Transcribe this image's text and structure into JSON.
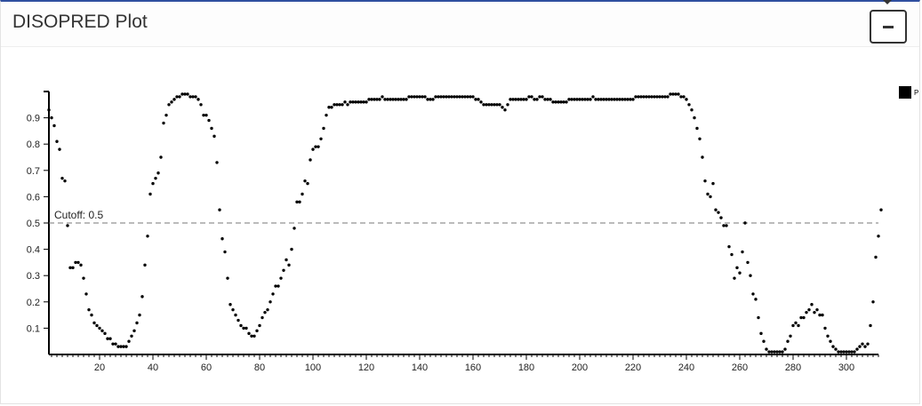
{
  "panel": {
    "title": "DISOPRED Plot"
  },
  "legend": {
    "label": "P"
  },
  "chart_data": {
    "type": "scatter",
    "title": "",
    "xlabel": "",
    "ylabel": "",
    "xlim": [
      1,
      312
    ],
    "ylim": [
      0,
      1
    ],
    "x_ticks": [
      20,
      40,
      60,
      80,
      100,
      120,
      140,
      160,
      180,
      200,
      220,
      240,
      260,
      280,
      300
    ],
    "y_ticks": [
      0.1,
      0.2,
      0.3,
      0.4,
      0.5,
      0.6,
      0.7,
      0.8,
      0.9
    ],
    "y_tick_labels": [
      "0.1",
      "0.2",
      "0.3",
      "0.4",
      "0.5",
      "0.6",
      "0.7",
      "0.8",
      "0.9"
    ],
    "cutoff": {
      "value": 0.5,
      "label": "Cutoff: 0.5"
    },
    "grid": false,
    "legend_position": "top-right",
    "point_color": "#000000",
    "series": [
      {
        "values": [
          0.93,
          0.9,
          0.87,
          0.81,
          0.78,
          0.67,
          0.66,
          0.49,
          0.33,
          0.33,
          0.35,
          0.35,
          0.34,
          0.29,
          0.23,
          0.17,
          0.15,
          0.12,
          0.11,
          0.1,
          0.09,
          0.08,
          0.06,
          0.06,
          0.04,
          0.04,
          0.03,
          0.03,
          0.03,
          0.03,
          0.05,
          0.07,
          0.09,
          0.12,
          0.15,
          0.22,
          0.34,
          0.45,
          0.61,
          0.65,
          0.67,
          0.69,
          0.75,
          0.88,
          0.91,
          0.95,
          0.96,
          0.97,
          0.98,
          0.98,
          0.99,
          0.99,
          0.99,
          0.98,
          0.98,
          0.98,
          0.97,
          0.95,
          0.91,
          0.91,
          0.89,
          0.86,
          0.83,
          0.73,
          0.55,
          0.44,
          0.39,
          0.29,
          0.19,
          0.17,
          0.15,
          0.13,
          0.11,
          0.1,
          0.1,
          0.08,
          0.07,
          0.07,
          0.09,
          0.11,
          0.14,
          0.16,
          0.17,
          0.2,
          0.23,
          0.26,
          0.26,
          0.29,
          0.32,
          0.36,
          0.34,
          0.4,
          0.48,
          0.58,
          0.58,
          0.61,
          0.66,
          0.65,
          0.74,
          0.78,
          0.79,
          0.79,
          0.82,
          0.86,
          0.91,
          0.94,
          0.94,
          0.95,
          0.95,
          0.95,
          0.95,
          0.96,
          0.95,
          0.96,
          0.96,
          0.96,
          0.96,
          0.96,
          0.96,
          0.96,
          0.97,
          0.97,
          0.97,
          0.97,
          0.97,
          0.98,
          0.97,
          0.97,
          0.97,
          0.97,
          0.97,
          0.97,
          0.97,
          0.97,
          0.97,
          0.98,
          0.98,
          0.98,
          0.98,
          0.98,
          0.98,
          0.98,
          0.97,
          0.97,
          0.97,
          0.98,
          0.98,
          0.98,
          0.98,
          0.98,
          0.98,
          0.98,
          0.98,
          0.98,
          0.98,
          0.98,
          0.98,
          0.98,
          0.98,
          0.98,
          0.97,
          0.97,
          0.96,
          0.95,
          0.95,
          0.95,
          0.95,
          0.95,
          0.95,
          0.95,
          0.94,
          0.93,
          0.95,
          0.97,
          0.97,
          0.97,
          0.97,
          0.97,
          0.97,
          0.97,
          0.98,
          0.98,
          0.97,
          0.97,
          0.98,
          0.98,
          0.97,
          0.97,
          0.97,
          0.96,
          0.96,
          0.96,
          0.96,
          0.96,
          0.96,
          0.97,
          0.97,
          0.97,
          0.97,
          0.97,
          0.97,
          0.97,
          0.97,
          0.97,
          0.98,
          0.97,
          0.97,
          0.97,
          0.97,
          0.97,
          0.97,
          0.97,
          0.97,
          0.97,
          0.97,
          0.97,
          0.97,
          0.97,
          0.97,
          0.97,
          0.98,
          0.98,
          0.98,
          0.98,
          0.98,
          0.98,
          0.98,
          0.98,
          0.98,
          0.98,
          0.98,
          0.98,
          0.98,
          0.99,
          0.99,
          0.99,
          0.99,
          0.98,
          0.98,
          0.97,
          0.95,
          0.93,
          0.9,
          0.86,
          0.82,
          0.75,
          0.66,
          0.61,
          0.6,
          0.65,
          0.55,
          0.54,
          0.52,
          0.49,
          0.49,
          0.41,
          0.38,
          0.29,
          0.33,
          0.31,
          0.39,
          0.5,
          0.35,
          0.3,
          0.23,
          0.21,
          0.14,
          0.08,
          0.05,
          0.02,
          0.01,
          0.01,
          0.01,
          0.01,
          0.01,
          0.01,
          0.02,
          0.05,
          0.07,
          0.11,
          0.12,
          0.11,
          0.14,
          0.14,
          0.16,
          0.17,
          0.19,
          0.16,
          0.17,
          0.15,
          0.15,
          0.1,
          0.07,
          0.05,
          0.03,
          0.02,
          0.01,
          0.01,
          0.01,
          0.01,
          0.01,
          0.01,
          0.01,
          0.02,
          0.03,
          0.04,
          0.03,
          0.04,
          0.11,
          0.2,
          0.37,
          0.45,
          0.55
        ]
      }
    ]
  }
}
